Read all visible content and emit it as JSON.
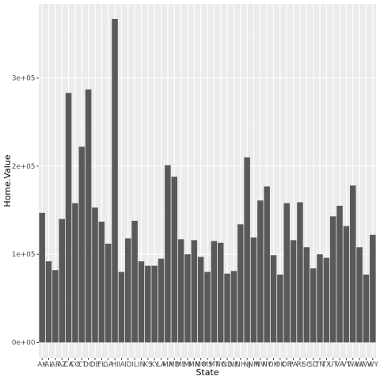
{
  "chart_data": {
    "type": "bar",
    "title": "",
    "xlabel": "State",
    "ylabel": "Home.Value",
    "ylim": [
      0,
      370000
    ],
    "yticks": [
      0,
      100000,
      200000,
      300000
    ],
    "ytick_labels": [
      "0e+00",
      "1e+05",
      "2e+05",
      "3e+05"
    ],
    "grid": true,
    "categories": [
      "AK",
      "AL",
      "AR",
      "AZ",
      "CA",
      "CO",
      "CT",
      "DC",
      "DE",
      "FL",
      "GA",
      "HI",
      "IA",
      "ID",
      "IL",
      "IN",
      "KS",
      "KY",
      "LA",
      "MA",
      "MD",
      "ME",
      "MI",
      "MN",
      "MO",
      "MS",
      "MT",
      "NC",
      "ND",
      "NE",
      "NH",
      "NJ",
      "NM",
      "NV",
      "NY",
      "OH",
      "OK",
      "OR",
      "PA",
      "RI",
      "SC",
      "SD",
      "TN",
      "TX",
      "UT",
      "VA",
      "VT",
      "WA",
      "WI",
      "WV",
      "WY"
    ],
    "values": [
      147000,
      92000,
      82000,
      140000,
      283000,
      158000,
      222000,
      287000,
      153000,
      137000,
      112000,
      367000,
      80000,
      118000,
      138000,
      92000,
      87000,
      87000,
      95000,
      201000,
      188000,
      117000,
      100000,
      116000,
      97000,
      80000,
      115000,
      113000,
      78000,
      81000,
      134000,
      210000,
      119000,
      161000,
      177000,
      99000,
      77000,
      158000,
      116000,
      159000,
      108000,
      84000,
      100000,
      96000,
      143000,
      155000,
      132000,
      178000,
      108000,
      77000,
      122000
    ],
    "colors": {
      "bar": "#595959",
      "panel": "#ebebeb",
      "grid_major": "#ffffff",
      "grid_minor": "#f2f2f2",
      "tick": "#333333"
    }
  }
}
